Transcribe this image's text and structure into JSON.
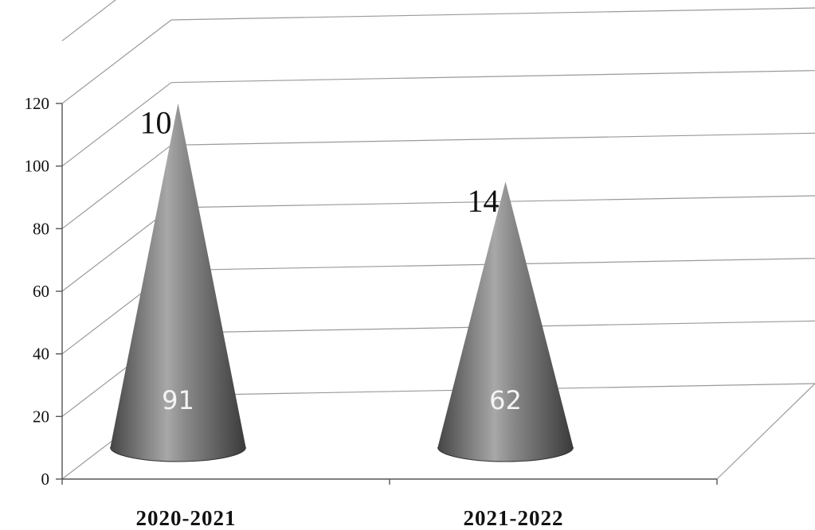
{
  "chart_data": {
    "type": "bar",
    "style": "3d-cone",
    "categories": [
      "2020-2021",
      "2021-2022"
    ],
    "values": [
      101,
      76
    ],
    "top_labels": [
      "10",
      "14"
    ],
    "inner_labels": [
      "91",
      "62"
    ],
    "ylim": [
      0,
      120
    ],
    "yticks": [
      "0",
      "20",
      "40",
      "60",
      "80",
      "100",
      "120"
    ],
    "grid": true,
    "colors": {
      "cone": "#6e6e6e",
      "cone_highlight": "#d0d0d0",
      "cone_shadow": "#3c3c3c",
      "grid": "#9a9a9a"
    }
  }
}
